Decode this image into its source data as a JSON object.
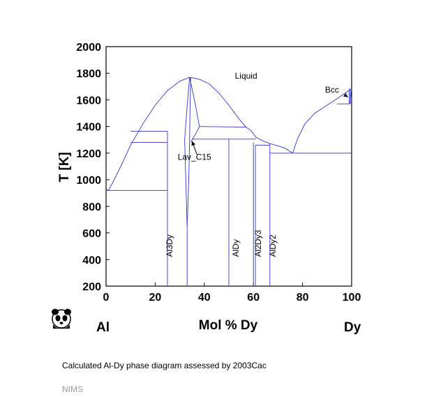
{
  "chart_data": {
    "type": "line",
    "title": "",
    "xlabel": "Mol % Dy",
    "ylabel": "T [K]",
    "xlim": [
      0,
      100
    ],
    "ylim": [
      200,
      2000
    ],
    "x_ticks": [
      0,
      20,
      40,
      60,
      80,
      100
    ],
    "y_ticks": [
      200,
      400,
      600,
      800,
      1000,
      1200,
      1400,
      1600,
      1800,
      2000
    ],
    "element_left": "Al",
    "element_right": "Dy",
    "grid": false,
    "line_color": "#3333cc",
    "region_labels": [
      {
        "text": "Liquid",
        "x": 57,
        "y": 1760
      },
      {
        "text": "Bcc",
        "x": 92,
        "y": 1655
      },
      {
        "text": "Lav_C15",
        "x": 36,
        "y": 1150
      }
    ],
    "compound_labels": [
      {
        "text": "Al3Dy",
        "x": 27,
        "y": 420
      },
      {
        "text": "AlDy",
        "x": 54,
        "y": 420
      },
      {
        "text": "Al2Dy3",
        "x": 63,
        "y": 420
      },
      {
        "text": "AlDy2",
        "x": 69,
        "y": 420
      }
    ],
    "lines": [
      [
        [
          0,
          930
        ],
        [
          1,
          920
        ],
        [
          3,
          990
        ],
        [
          6,
          1100
        ],
        [
          10,
          1260
        ],
        [
          15,
          1420
        ],
        [
          20,
          1560
        ],
        [
          25,
          1670
        ],
        [
          30,
          1740
        ],
        [
          34,
          1770
        ],
        [
          38,
          1755
        ],
        [
          42,
          1720
        ],
        [
          46,
          1650
        ],
        [
          50,
          1560
        ],
        [
          54,
          1460
        ],
        [
          57,
          1395
        ]
      ],
      [
        [
          57,
          1395
        ],
        [
          59,
          1370
        ],
        [
          61,
          1320
        ],
        [
          64,
          1290
        ],
        [
          67,
          1270
        ],
        [
          70,
          1255
        ],
        [
          73,
          1235
        ],
        [
          76,
          1200
        ]
      ],
      [
        [
          76,
          1200
        ],
        [
          78,
          1310
        ],
        [
          81,
          1420
        ],
        [
          85,
          1500
        ],
        [
          90,
          1560
        ],
        [
          95,
          1620
        ],
        [
          100,
          1685
        ]
      ],
      [
        [
          0,
          920
        ],
        [
          25,
          920
        ]
      ],
      [
        [
          10,
          1365
        ],
        [
          25,
          1365
        ]
      ],
      [
        [
          10,
          1280
        ],
        [
          25,
          1280
        ]
      ],
      [
        [
          25,
          200
        ],
        [
          25,
          1365
        ]
      ],
      [
        [
          33,
          200
        ],
        [
          33,
          650
        ]
      ],
      [
        [
          33,
          650
        ],
        [
          32.6,
          900
        ],
        [
          32.3,
          1100
        ],
        [
          32,
          1300
        ],
        [
          33,
          1550
        ],
        [
          34,
          1770
        ]
      ],
      [
        [
          33,
          650
        ],
        [
          33.5,
          900
        ],
        [
          33.8,
          1100
        ],
        [
          34,
          1300
        ],
        [
          34.2,
          1550
        ],
        [
          34.5,
          1770
        ]
      ],
      [
        [
          34,
          1770
        ],
        [
          36,
          1600
        ],
        [
          38,
          1400
        ]
      ],
      [
        [
          38,
          1400
        ],
        [
          57,
          1395
        ]
      ],
      [
        [
          34.5,
          1280
        ],
        [
          35,
          1300
        ],
        [
          37,
          1360
        ],
        [
          38,
          1400
        ]
      ],
      [
        [
          35,
          1305
        ],
        [
          61,
          1305
        ]
      ],
      [
        [
          50,
          200
        ],
        [
          50,
          1305
        ]
      ],
      [
        [
          60,
          200
        ],
        [
          60,
          1280
        ]
      ],
      [
        [
          60.8,
          1260
        ],
        [
          66.7,
          1260
        ]
      ],
      [
        [
          60.8,
          200
        ],
        [
          60.8,
          1260
        ]
      ],
      [
        [
          66.7,
          200
        ],
        [
          66.7,
          1270
        ]
      ],
      [
        [
          66.7,
          1200
        ],
        [
          100,
          1200
        ]
      ],
      [
        [
          94,
          1570
        ],
        [
          99,
          1570
        ]
      ],
      [
        [
          99,
          1570
        ],
        [
          99,
          1685
        ]
      ],
      [
        [
          99.3,
          1570
        ],
        [
          100,
          1685
        ]
      ],
      [
        [
          99.5,
          1570
        ],
        [
          99.5,
          1680
        ]
      ]
    ],
    "arrows": [
      {
        "from": [
          97,
          1640
        ],
        "to": [
          98.5,
          1620
        ]
      },
      {
        "from": [
          37,
          1190
        ],
        "to": [
          35,
          1290
        ]
      }
    ]
  },
  "caption": "Calculated Al-Dy phase diagram assessed by 2003Cac",
  "footer": "NIMS",
  "logo_icon": "panda-logo-icon"
}
